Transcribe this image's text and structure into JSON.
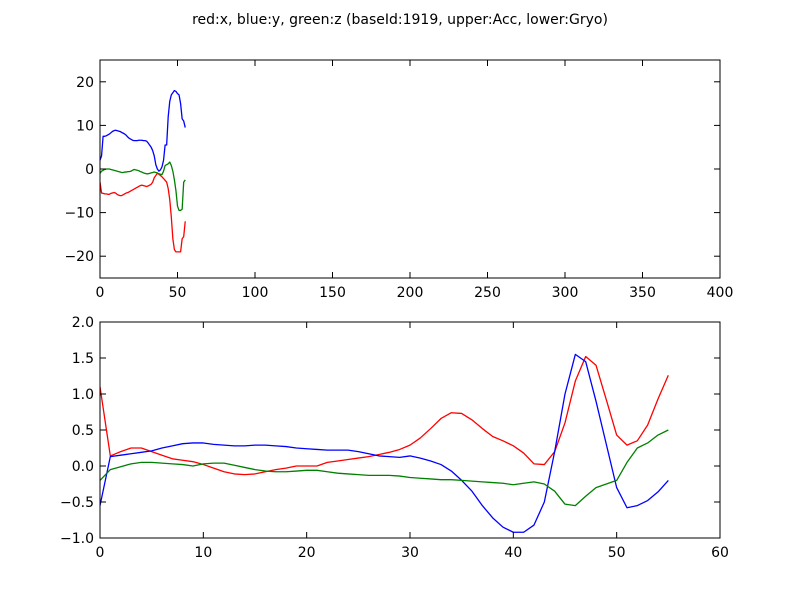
{
  "figure": {
    "title": "red:x, blue:y, green:z (baseId:1919, upper:Acc, lower:Gryo)"
  },
  "chart_data": [
    {
      "type": "line",
      "xlim": [
        0,
        400
      ],
      "ylim": [
        -25,
        25
      ],
      "xticks": [
        "0",
        "50",
        "100",
        "150",
        "200",
        "250",
        "300",
        "350",
        "400"
      ],
      "yticks": [
        "20",
        "10",
        "0",
        "−10",
        "−20"
      ],
      "grid": false,
      "series": [
        {
          "color": "#ff0000",
          "x": [
            0,
            1,
            2,
            3,
            4,
            5,
            6,
            7,
            8,
            9,
            10,
            11,
            12,
            13,
            14,
            15,
            16,
            17,
            18,
            19,
            20,
            21,
            22,
            23,
            24,
            25,
            26,
            27,
            28,
            29,
            30,
            31,
            32,
            33,
            34,
            35,
            36,
            37,
            38,
            39,
            40,
            41,
            42,
            43,
            44,
            45,
            46,
            47,
            48,
            49,
            50,
            51,
            52,
            53,
            54,
            55
          ],
          "y": [
            -3,
            -5.5,
            -5.6,
            -5.7,
            -5.7,
            -5.8,
            -5.8,
            -5.6,
            -5.5,
            -5.4,
            -5.5,
            -5.8,
            -6.0,
            -6.1,
            -6.1,
            -5.9,
            -5.7,
            -5.5,
            -5.4,
            -5.2,
            -5.0,
            -4.8,
            -4.6,
            -4.4,
            -4.2,
            -4.0,
            -3.8,
            -3.7,
            -3.8,
            -3.9,
            -4.0,
            -3.9,
            -3.7,
            -3.5,
            -3.0,
            -2.0,
            -1.5,
            -1.0,
            -1.2,
            -1.5,
            -1.8,
            -2.2,
            -2.6,
            -3.0,
            -4.5,
            -7.0,
            -11.0,
            -16.0,
            -18.5,
            -19.0,
            -19.0,
            -19.0,
            -19.0,
            -16.0,
            -15.5,
            -12.0
          ]
        },
        {
          "color": "#0000ff",
          "x": [
            0,
            1,
            2,
            3,
            4,
            5,
            6,
            7,
            8,
            9,
            10,
            11,
            12,
            13,
            14,
            15,
            16,
            17,
            18,
            19,
            20,
            21,
            22,
            23,
            24,
            25,
            26,
            27,
            28,
            29,
            30,
            31,
            32,
            33,
            34,
            35,
            36,
            37,
            38,
            39,
            40,
            41,
            42,
            43,
            44,
            45,
            46,
            47,
            48,
            49,
            50,
            51,
            52,
            53,
            54,
            55
          ],
          "y": [
            2,
            3,
            7.5,
            7.5,
            7.6,
            7.8,
            8.0,
            8.3,
            8.6,
            8.8,
            8.9,
            8.8,
            8.7,
            8.6,
            8.4,
            8.2,
            8.0,
            7.7,
            7.3,
            7.0,
            6.8,
            6.6,
            6.5,
            6.5,
            6.5,
            6.6,
            6.6,
            6.6,
            6.5,
            6.5,
            6.4,
            6.0,
            5.5,
            5.0,
            4.2,
            3.0,
            1.0,
            0,
            -0.5,
            -0.2,
            0.5,
            2.0,
            5.5,
            5.5,
            12,
            15.5,
            17.0,
            17.5,
            18.0,
            17.8,
            17.3,
            17.0,
            15.0,
            11.5,
            11.0,
            9.5
          ]
        },
        {
          "color": "#008000",
          "x": [
            0,
            1,
            2,
            3,
            4,
            5,
            6,
            7,
            8,
            9,
            10,
            11,
            12,
            13,
            14,
            15,
            16,
            17,
            18,
            19,
            20,
            21,
            22,
            23,
            24,
            25,
            26,
            27,
            28,
            29,
            30,
            31,
            32,
            33,
            34,
            35,
            36,
            37,
            38,
            39,
            40,
            41,
            42,
            43,
            44,
            45,
            46,
            47,
            48,
            49,
            50,
            51,
            52,
            53,
            54,
            55
          ],
          "y": [
            -1,
            -0.5,
            -0.3,
            -0.1,
            0,
            0,
            0,
            -0.1,
            -0.2,
            -0.3,
            -0.4,
            -0.5,
            -0.6,
            -0.7,
            -0.8,
            -0.8,
            -0.7,
            -0.7,
            -0.6,
            -0.6,
            -0.5,
            -0.3,
            -0.1,
            -0.2,
            -0.3,
            -0.4,
            -0.6,
            -0.7,
            -0.9,
            -1.0,
            -1.1,
            -1.1,
            -1.0,
            -0.9,
            -0.8,
            -0.7,
            -0.8,
            -0.9,
            -1.1,
            -1.2,
            -1.3,
            -0.5,
            0.8,
            1.0,
            1.2,
            1.6,
            0.8,
            -0.5,
            -2.5,
            -5.0,
            -8.5,
            -9.5,
            -9.5,
            -9.2,
            -3.0,
            -2.5
          ]
        }
      ]
    },
    {
      "type": "line",
      "xlim": [
        0,
        60
      ],
      "ylim": [
        -1.0,
        2.0
      ],
      "xticks": [
        "0",
        "10",
        "20",
        "30",
        "40",
        "50",
        "60"
      ],
      "yticks": [
        "2.0",
        "1.5",
        "1.0",
        "0.5",
        "0.0",
        "−0.5",
        "−1.0"
      ],
      "grid": false,
      "series": [
        {
          "color": "#ff0000",
          "x": [
            0,
            1,
            2,
            3,
            4,
            5,
            6,
            7,
            8,
            9,
            10,
            11,
            12,
            13,
            14,
            15,
            16,
            17,
            18,
            19,
            20,
            21,
            22,
            23,
            24,
            25,
            26,
            27,
            28,
            29,
            30,
            31,
            32,
            33,
            34,
            35,
            36,
            37,
            38,
            39,
            40,
            41,
            42,
            43,
            44,
            45,
            46,
            47,
            48,
            49,
            50,
            51,
            52,
            53,
            54,
            55
          ],
          "y": [
            1.1,
            0.14,
            0.2,
            0.25,
            0.25,
            0.2,
            0.15,
            0.1,
            0.08,
            0.06,
            0.02,
            -0.03,
            -0.08,
            -0.11,
            -0.12,
            -0.11,
            -0.08,
            -0.05,
            -0.03,
            0.0,
            0.0,
            0.0,
            0.05,
            0.07,
            0.09,
            0.11,
            0.13,
            0.16,
            0.19,
            0.23,
            0.29,
            0.39,
            0.52,
            0.66,
            0.74,
            0.73,
            0.64,
            0.52,
            0.41,
            0.35,
            0.28,
            0.18,
            0.03,
            0.02,
            0.2,
            0.6,
            1.18,
            1.52,
            1.4,
            0.92,
            0.43,
            0.29,
            0.35,
            0.57,
            0.93,
            1.26
          ]
        },
        {
          "color": "#0000ff",
          "x": [
            0,
            1,
            2,
            3,
            4,
            5,
            6,
            7,
            8,
            9,
            10,
            11,
            12,
            13,
            14,
            15,
            16,
            17,
            18,
            19,
            20,
            21,
            22,
            23,
            24,
            25,
            26,
            27,
            28,
            29,
            30,
            31,
            32,
            33,
            34,
            35,
            36,
            37,
            38,
            39,
            40,
            41,
            42,
            43,
            44,
            45,
            46,
            47,
            48,
            49,
            50,
            51,
            52,
            53,
            54,
            55
          ],
          "y": [
            -0.55,
            0.13,
            0.15,
            0.17,
            0.19,
            0.21,
            0.25,
            0.28,
            0.31,
            0.32,
            0.32,
            0.3,
            0.29,
            0.28,
            0.28,
            0.29,
            0.29,
            0.28,
            0.27,
            0.25,
            0.24,
            0.23,
            0.22,
            0.22,
            0.22,
            0.2,
            0.17,
            0.14,
            0.13,
            0.12,
            0.14,
            0.11,
            0.07,
            0.02,
            -0.07,
            -0.2,
            -0.35,
            -0.55,
            -0.72,
            -0.85,
            -0.92,
            -0.92,
            -0.82,
            -0.5,
            0.2,
            1.0,
            1.55,
            1.45,
            0.9,
            0.3,
            -0.3,
            -0.58,
            -0.55,
            -0.48,
            -0.36,
            -0.2
          ]
        },
        {
          "color": "#008000",
          "x": [
            0,
            1,
            2,
            3,
            4,
            5,
            6,
            7,
            8,
            9,
            10,
            11,
            12,
            13,
            14,
            15,
            16,
            17,
            18,
            19,
            20,
            21,
            22,
            23,
            24,
            25,
            26,
            27,
            28,
            29,
            30,
            31,
            32,
            33,
            34,
            35,
            36,
            37,
            38,
            39,
            40,
            41,
            42,
            43,
            44,
            45,
            46,
            47,
            48,
            49,
            50,
            51,
            52,
            53,
            54,
            55
          ],
          "y": [
            -0.2,
            -0.05,
            -0.01,
            0.03,
            0.05,
            0.05,
            0.04,
            0.03,
            0.02,
            0.0,
            0.03,
            0.04,
            0.04,
            0.01,
            -0.02,
            -0.05,
            -0.07,
            -0.08,
            -0.08,
            -0.07,
            -0.06,
            -0.06,
            -0.08,
            -0.1,
            -0.11,
            -0.12,
            -0.13,
            -0.13,
            -0.13,
            -0.14,
            -0.16,
            -0.17,
            -0.18,
            -0.19,
            -0.19,
            -0.2,
            -0.21,
            -0.22,
            -0.23,
            -0.24,
            -0.26,
            -0.24,
            -0.22,
            -0.25,
            -0.35,
            -0.53,
            -0.55,
            -0.42,
            -0.3,
            -0.25,
            -0.2,
            0.05,
            0.25,
            0.32,
            0.43,
            0.5
          ]
        }
      ]
    }
  ]
}
